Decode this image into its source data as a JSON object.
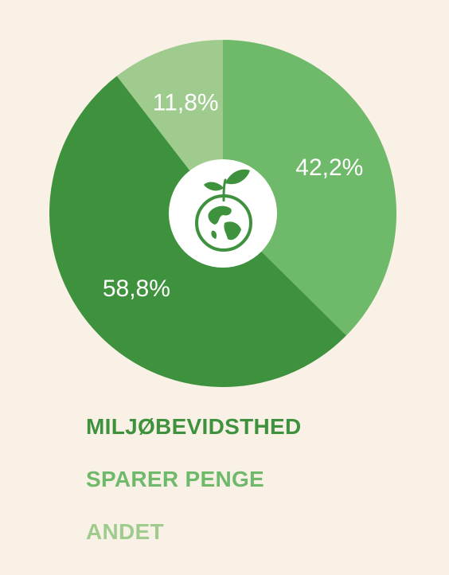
{
  "chart_data": {
    "type": "pie",
    "variant": "donut-with-center-icon",
    "title": "",
    "start": "top",
    "direction": "clockwise",
    "labels_shown_on_slices": true,
    "legend_placement": "below-left",
    "center_icon": "sprouting-globe-icon",
    "slices": [
      {
        "name": "SPARER PENGE",
        "value": 42.2,
        "label": "42,2%",
        "color": "#6fb96a"
      },
      {
        "name": "MILJØBEVIDSTHED",
        "value": 58.8,
        "label": "58,8%",
        "color": "#3f923d"
      },
      {
        "name": "ANDET",
        "value": 11.8,
        "label": "11,8%",
        "color": "#9fcc8e"
      }
    ],
    "legend": [
      {
        "label": "MILJØBEVIDSTHED",
        "color": "#3f923d"
      },
      {
        "label": "SPARER PENGE",
        "color": "#6fb96a"
      },
      {
        "label": "ANDET",
        "color": "#9fcc8e"
      }
    ]
  }
}
